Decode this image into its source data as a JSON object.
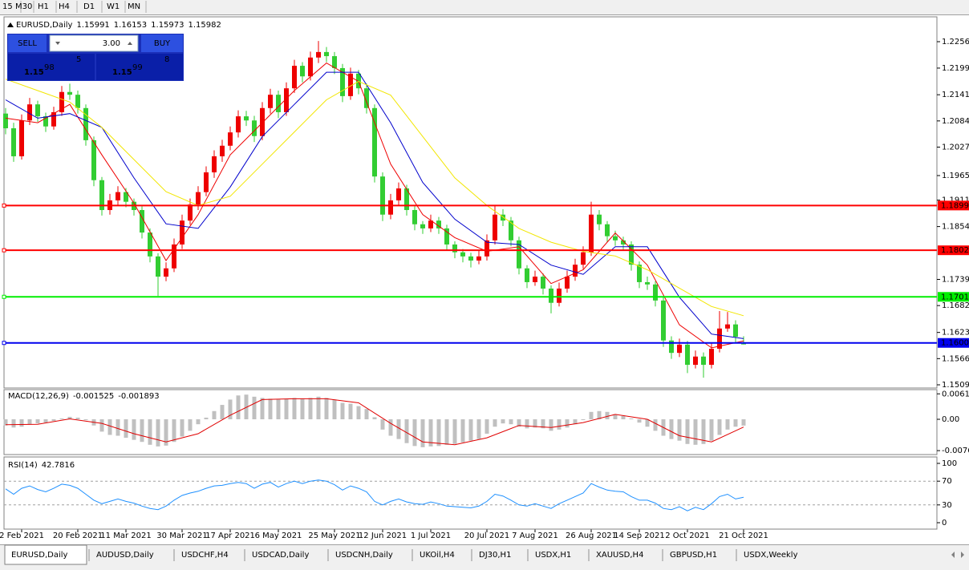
{
  "toolbar": {
    "timeframes": [
      "15",
      "M30",
      "H1",
      "H4",
      "D1",
      "W1",
      "MN"
    ]
  },
  "trade_panel": {
    "sell": "SELL",
    "lot": "3.00",
    "buy": "BUY",
    "sell_price": {
      "big_figure": "1.15",
      "pips": "98",
      "fraction": "5"
    },
    "buy_price": {
      "big_figure": "1.15",
      "pips": "99",
      "fraction": "8"
    }
  },
  "chart_data": [
    {
      "type": "candlestick",
      "symbol": "EURUSD,Daily",
      "up_color": "#ee0000",
      "down_color": "#32cd32",
      "xlim": [
        -0.2,
        116.1
      ],
      "xticks": [
        {
          "value": 2,
          "label": "2 Feb 2021"
        },
        {
          "value": 9,
          "label": "20 Feb 2021"
        },
        {
          "value": 15,
          "label": "11 Mar 2021"
        },
        {
          "value": 22,
          "label": "30 Mar 2021"
        },
        {
          "value": 28,
          "label": "17 Apr 2021"
        },
        {
          "value": 34,
          "label": "6 May 2021"
        },
        {
          "value": 41,
          "label": "25 May 2021"
        },
        {
          "value": 47,
          "label": "12 Jun 2021"
        },
        {
          "value": 53,
          "label": "1 Jul 2021"
        },
        {
          "value": 60,
          "label": "20 Jul 2021"
        },
        {
          "value": 66,
          "label": "7 Aug 2021"
        },
        {
          "value": 73,
          "label": "26 Aug 2021"
        },
        {
          "value": 79,
          "label": "14 Sep 2021"
        },
        {
          "value": 85,
          "label": "2 Oct 2021"
        },
        {
          "value": 92,
          "label": "21 Oct 2021"
        }
      ],
      "ylim": [
        1.15025,
        1.23106
      ],
      "yticks": [
        1.22565,
        {
          "value": 1.2199,
          "label": "1.21990"
        },
        {
          "value": 1.2141,
          "label": "1.21410"
        },
        {
          "value": 1.2084,
          "label": "1.20840"
        },
        {
          "value": 1.2027,
          "label": "1.20270"
        },
        {
          "value": 1.1965,
          "label": "1.19650"
        },
        1.19115,
        {
          "value": 1.1854,
          "label": "1.18540"
        },
        {
          "value": 1.1739,
          "label": "1.17390"
        },
        {
          "value": 1.1682,
          "label": "1.16820"
        },
        1.16235,
        1.15665,
        1.15095
      ],
      "ohlc": [
        [
          1.21,
          1.2112,
          1.2055,
          1.2068
        ],
        [
          1.2068,
          1.208,
          1.1995,
          1.2007
        ],
        [
          1.2007,
          1.2098,
          1.2,
          1.2085
        ],
        [
          1.2085,
          1.2134,
          1.2075,
          1.212
        ],
        [
          1.212,
          1.2128,
          1.2082,
          1.2094
        ],
        [
          1.2094,
          1.2102,
          1.206,
          1.2072
        ],
        [
          1.2072,
          1.2115,
          1.2065,
          1.2103
        ],
        [
          1.2103,
          1.216,
          1.2095,
          1.2147
        ],
        [
          1.2147,
          1.2165,
          1.213,
          1.2141
        ],
        [
          1.2141,
          1.215,
          1.21,
          1.2112
        ],
        [
          1.2112,
          1.212,
          1.203,
          1.2042
        ],
        [
          1.2042,
          1.205,
          1.1942,
          1.1955
        ],
        [
          1.1955,
          1.1962,
          1.1878,
          1.189
        ],
        [
          1.189,
          1.1925,
          1.188,
          1.1911
        ],
        [
          1.1911,
          1.1942,
          1.19,
          1.1929
        ],
        [
          1.1929,
          1.1938,
          1.1896,
          1.1908
        ],
        [
          1.1908,
          1.1915,
          1.1878,
          1.189
        ],
        [
          1.189,
          1.1898,
          1.1828,
          1.1841
        ],
        [
          1.1841,
          1.185,
          1.1776,
          1.1789
        ],
        [
          1.1789,
          1.1796,
          1.1703,
          1.1745
        ],
        [
          1.1745,
          1.1776,
          1.1735,
          1.1763
        ],
        [
          1.1763,
          1.1828,
          1.1755,
          1.1815
        ],
        [
          1.1815,
          1.188,
          1.1805,
          1.1867
        ],
        [
          1.1867,
          1.1915,
          1.1858,
          1.1902
        ],
        [
          1.1902,
          1.1942,
          1.189,
          1.1929
        ],
        [
          1.1929,
          1.1985,
          1.192,
          1.1972
        ],
        [
          1.1972,
          1.202,
          1.196,
          1.2007
        ],
        [
          1.2007,
          1.2043,
          1.1995,
          1.203
        ],
        [
          1.203,
          1.2072,
          1.202,
          1.2059
        ],
        [
          1.2059,
          1.2107,
          1.2048,
          1.2094
        ],
        [
          1.2094,
          1.2106,
          1.2073,
          1.2085
        ],
        [
          1.2085,
          1.2095,
          1.2038,
          1.2051
        ],
        [
          1.2051,
          1.2125,
          1.2042,
          1.2112
        ],
        [
          1.2112,
          1.2154,
          1.21,
          1.2141
        ],
        [
          1.2141,
          1.215,
          1.209,
          1.2103
        ],
        [
          1.2103,
          1.2168,
          1.2095,
          1.2155
        ],
        [
          1.2155,
          1.2217,
          1.2145,
          1.2204
        ],
        [
          1.2204,
          1.2212,
          1.2168,
          1.2181
        ],
        [
          1.2181,
          1.2235,
          1.2172,
          1.2222
        ],
        [
          1.2222,
          1.2258,
          1.221,
          1.2234
        ],
        [
          1.2234,
          1.2245,
          1.2212,
          1.2225
        ],
        [
          1.2225,
          1.2234,
          1.2186,
          1.2199
        ],
        [
          1.2199,
          1.2208,
          1.2125,
          1.2138
        ],
        [
          1.2138,
          1.22,
          1.213,
          1.2187
        ],
        [
          1.2187,
          1.2195,
          1.2142,
          1.2155
        ],
        [
          1.2155,
          1.2165,
          1.21,
          1.2112
        ],
        [
          1.2112,
          1.212,
          1.195,
          1.1963
        ],
        [
          1.1963,
          1.1972,
          1.1866,
          1.188
        ],
        [
          1.188,
          1.1925,
          1.187,
          1.1911
        ],
        [
          1.1911,
          1.195,
          1.19,
          1.1937
        ],
        [
          1.1937,
          1.1945,
          1.1878,
          1.189
        ],
        [
          1.189,
          1.1898,
          1.1846,
          1.1859
        ],
        [
          1.1859,
          1.1866,
          1.1838,
          1.185
        ],
        [
          1.185,
          1.188,
          1.1842,
          1.1867
        ],
        [
          1.1867,
          1.1875,
          1.1838,
          1.185
        ],
        [
          1.185,
          1.1858,
          1.1802,
          1.1815
        ],
        [
          1.1815,
          1.1822,
          1.1785,
          1.1798
        ],
        [
          1.1798,
          1.1805,
          1.1776,
          1.1789
        ],
        [
          1.1789,
          1.1797,
          1.1765,
          1.178
        ],
        [
          1.178,
          1.1802,
          1.1772,
          1.1789
        ],
        [
          1.1789,
          1.1837,
          1.178,
          1.1824
        ],
        [
          1.1824,
          1.19,
          1.1815,
          1.188
        ],
        [
          1.188,
          1.1892,
          1.1855,
          1.1867
        ],
        [
          1.1867,
          1.1875,
          1.1811,
          1.1824
        ],
        [
          1.1824,
          1.1832,
          1.175,
          1.1763
        ],
        [
          1.1763,
          1.177,
          1.172,
          1.1733
        ],
        [
          1.1733,
          1.1758,
          1.1725,
          1.1745
        ],
        [
          1.1745,
          1.1752,
          1.1706,
          1.1719
        ],
        [
          1.1719,
          1.1726,
          1.1665,
          1.1688
        ],
        [
          1.1688,
          1.1732,
          1.168,
          1.1719
        ],
        [
          1.1719,
          1.1758,
          1.171,
          1.1745
        ],
        [
          1.1745,
          1.1784,
          1.1736,
          1.1771
        ],
        [
          1.1771,
          1.1811,
          1.1762,
          1.1798
        ],
        [
          1.1798,
          1.1908,
          1.179,
          1.188
        ],
        [
          1.188,
          1.189,
          1.1846,
          1.1859
        ],
        [
          1.1859,
          1.1866,
          1.182,
          1.1833
        ],
        [
          1.1833,
          1.1845,
          1.1812,
          1.1824
        ],
        [
          1.1824,
          1.1832,
          1.1802,
          1.1815
        ],
        [
          1.1815,
          1.1822,
          1.1758,
          1.1771
        ],
        [
          1.1771,
          1.1778,
          1.172,
          1.1733
        ],
        [
          1.1733,
          1.1745,
          1.1716,
          1.1728
        ],
        [
          1.1728,
          1.1735,
          1.168,
          1.1693
        ],
        [
          1.1693,
          1.17,
          1.1592,
          1.1606
        ],
        [
          1.1606,
          1.1615,
          1.1566,
          1.1579
        ],
        [
          1.1579,
          1.161,
          1.157,
          1.1597
        ],
        [
          1.1597,
          1.1605,
          1.1535,
          1.1553
        ],
        [
          1.1553,
          1.1584,
          1.1545,
          1.1571
        ],
        [
          1.1571,
          1.158,
          1.1525,
          1.1553
        ],
        [
          1.1553,
          1.16,
          1.1545,
          1.1588
        ],
        [
          1.1588,
          1.167,
          1.158,
          1.1632
        ],
        [
          1.1632,
          1.1668,
          1.1625,
          1.1641
        ],
        [
          1.1641,
          1.165,
          1.16,
          1.1614
        ],
        [
          1.15991,
          1.16153,
          1.15973,
          1.15982
        ]
      ],
      "moving_averages": [
        {
          "color": "#ee0000",
          "x": [
            0,
            4,
            8,
            12,
            16,
            20,
            24,
            28,
            32,
            36,
            40,
            44,
            48,
            52,
            56,
            60,
            64,
            68,
            72,
            76,
            80,
            84,
            88,
            92
          ],
          "values": [
            1.209,
            1.208,
            1.212,
            1.201,
            1.1905,
            1.178,
            1.188,
            1.201,
            1.208,
            1.215,
            1.221,
            1.217,
            1.199,
            1.188,
            1.183,
            1.18,
            1.181,
            1.173,
            1.176,
            1.184,
            1.177,
            1.164,
            1.159,
            1.1605
          ]
        },
        {
          "color": "#0000cc",
          "x": [
            0,
            4,
            8,
            12,
            16,
            20,
            24,
            28,
            32,
            36,
            40,
            44,
            48,
            52,
            56,
            60,
            64,
            68,
            72,
            76,
            80,
            84,
            88,
            92
          ],
          "values": [
            1.213,
            1.209,
            1.21,
            1.207,
            1.196,
            1.186,
            1.185,
            1.194,
            1.205,
            1.212,
            1.219,
            1.219,
            1.208,
            1.195,
            1.187,
            1.182,
            1.1815,
            1.177,
            1.175,
            1.181,
            1.181,
            1.17,
            1.162,
            1.161
          ]
        },
        {
          "color": "#f2e600",
          "x": [
            0,
            4,
            8,
            12,
            16,
            20,
            24,
            28,
            32,
            36,
            40,
            44,
            48,
            52,
            56,
            60,
            64,
            68,
            72,
            76,
            80,
            84,
            88,
            92
          ],
          "values": [
            1.2175,
            1.215,
            1.2125,
            1.207,
            1.2,
            1.193,
            1.19,
            1.192,
            1.199,
            1.206,
            1.213,
            1.217,
            1.214,
            1.205,
            1.196,
            1.19,
            1.185,
            1.182,
            1.18,
            1.179,
            1.176,
            1.172,
            1.168,
            1.166
          ]
        }
      ],
      "levels": {
        "values": [
          1.18998,
          1.18024,
          1.1701,
          1.16007
        ],
        "value_labels": [
          "1.18998",
          "1.18024",
          "1.17010",
          "1.16007"
        ],
        "colors": [
          "#ff0000",
          "#ff0000",
          "#00ee00",
          "#0000ee"
        ]
      }
    },
    {
      "type": "bar",
      "name": "MACD(12,26,9)",
      "color": "#c0c0c0",
      "xlim": [
        -0.2,
        116.1
      ],
      "ylim": [
        -0.00858,
        0.00722
      ],
      "yticks": [
        0.006193,
        {
          "value": 0,
          "label": "0.00"
        },
        -0.00762
      ],
      "values": [
        -0.0015,
        -0.002,
        -0.0018,
        -0.0012,
        -0.001,
        -0.0008,
        -0.0004,
        0.0002,
        0.0006,
        0.0004,
        -0.0002,
        -0.0015,
        -0.003,
        -0.0038,
        -0.004,
        -0.0045,
        -0.005,
        -0.0055,
        -0.0062,
        -0.0066,
        -0.0064,
        -0.0055,
        -0.0042,
        -0.0028,
        -0.0012,
        0.0004,
        0.002,
        0.0035,
        0.0048,
        0.0058,
        0.006,
        0.0055,
        0.0052,
        0.005,
        0.0048,
        0.005,
        0.0052,
        0.005,
        0.0052,
        0.0055,
        0.0052,
        0.0048,
        0.004,
        0.0038,
        0.0032,
        0.0025,
        0.0005,
        -0.0025,
        -0.004,
        -0.0048,
        -0.0058,
        -0.0065,
        -0.0068,
        -0.0066,
        -0.0065,
        -0.0062,
        -0.006,
        -0.0056,
        -0.0052,
        -0.0048,
        -0.0035,
        -0.0018,
        -0.001,
        -0.0012,
        -0.0018,
        -0.0022,
        -0.002,
        -0.0022,
        -0.0028,
        -0.0025,
        -0.002,
        -0.0012,
        -0.0002,
        0.0018,
        0.002,
        0.0018,
        0.0012,
        0.0008,
        0.0002,
        -0.0008,
        -0.0018,
        -0.0028,
        -0.004,
        -0.0048,
        -0.0052,
        -0.006,
        -0.0062,
        -0.006,
        -0.0052,
        -0.0038,
        -0.0025,
        -0.0018,
        -0.001525
      ],
      "signal": {
        "color": "#e00000",
        "x": [
          0,
          4,
          8,
          12,
          16,
          20,
          24,
          28,
          32,
          36,
          40,
          44,
          48,
          52,
          56,
          60,
          64,
          68,
          72,
          76,
          80,
          84,
          88,
          92
        ],
        "values": [
          -0.0013,
          -0.0012,
          0.0001,
          -0.001,
          -0.0035,
          -0.0055,
          -0.0035,
          0.001,
          0.0048,
          0.005,
          0.005,
          0.004,
          -0.001,
          -0.0055,
          -0.0062,
          -0.0045,
          -0.0015,
          -0.002,
          -0.0008,
          0.0012,
          0.0,
          -0.004,
          -0.0055,
          -0.001893
        ]
      }
    },
    {
      "type": "line",
      "name": "RSI(14)",
      "color": "#1e90ff",
      "xlim": [
        -0.2,
        116.1
      ],
      "ylim": [
        -10.8,
        110.8
      ],
      "yticks": [
        100,
        70,
        30,
        0
      ],
      "values": [
        57,
        48,
        58,
        62,
        56,
        52,
        58,
        65,
        63,
        58,
        48,
        38,
        32,
        36,
        40,
        36,
        33,
        28,
        24,
        22,
        28,
        38,
        46,
        50,
        53,
        58,
        62,
        63,
        66,
        68,
        66,
        58,
        65,
        68,
        60,
        66,
        70,
        66,
        70,
        72,
        70,
        64,
        55,
        62,
        58,
        52,
        36,
        30,
        36,
        40,
        35,
        32,
        31,
        35,
        32,
        28,
        27,
        26,
        25,
        28,
        36,
        48,
        45,
        38,
        30,
        28,
        32,
        28,
        24,
        32,
        38,
        44,
        50,
        66,
        60,
        55,
        53,
        52,
        44,
        38,
        38,
        33,
        24,
        22,
        27,
        20,
        26,
        22,
        32,
        44,
        48,
        40,
        42.7816
      ]
    }
  ],
  "tabs": [
    "EURUSD,Daily",
    "AUDUSD,Daily",
    "USDCHF,H4",
    "USDCAD,Daily",
    "USDCNH,Daily",
    "UKOil,H4",
    "DJ30,H1",
    "USDX,H1",
    "XAUUSD,H4",
    "GBPUSD,H1",
    "USDX,Weekly"
  ]
}
